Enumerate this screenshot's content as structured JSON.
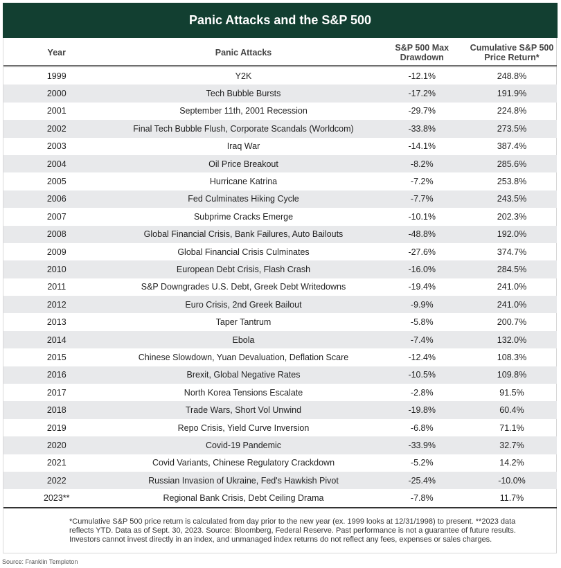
{
  "title": "Panic Attacks and the S&P 500",
  "headers": {
    "year": "Year",
    "panic": "Panic Attacks",
    "drawdown": "S&P 500 Max Drawdown",
    "return": "Cumulative S&P 500 Price Return*"
  },
  "rows": [
    [
      "1999",
      "Y2K",
      "-12.1%",
      "248.8%"
    ],
    [
      "2000",
      "Tech Bubble Bursts",
      "-17.2%",
      "191.9%"
    ],
    [
      "2001",
      "September 11th, 2001 Recession",
      "-29.7%",
      "224.8%"
    ],
    [
      "2002",
      "Final Tech Bubble Flush, Corporate Scandals (Worldcom)",
      "-33.8%",
      "273.5%"
    ],
    [
      "2003",
      "Iraq War",
      "-14.1%",
      "387.4%"
    ],
    [
      "2004",
      "Oil Price Breakout",
      "-8.2%",
      "285.6%"
    ],
    [
      "2005",
      "Hurricane Katrina",
      "-7.2%",
      "253.8%"
    ],
    [
      "2006",
      "Fed Culminates Hiking Cycle",
      "-7.7%",
      "243.5%"
    ],
    [
      "2007",
      "Subprime Cracks Emerge",
      "-10.1%",
      "202.3%"
    ],
    [
      "2008",
      "Global Financial Crisis, Bank Failures, Auto Bailouts",
      "-48.8%",
      "192.0%"
    ],
    [
      "2009",
      "Global Financial Crisis Culminates",
      "-27.6%",
      "374.7%"
    ],
    [
      "2010",
      "European Debt Crisis, Flash Crash",
      "-16.0%",
      "284.5%"
    ],
    [
      "2011",
      "S&P Downgrades U.S. Debt, Greek Debt Writedowns",
      "-19.4%",
      "241.0%"
    ],
    [
      "2012",
      "Euro Crisis, 2nd Greek Bailout",
      "-9.9%",
      "241.0%"
    ],
    [
      "2013",
      "Taper Tantrum",
      "-5.8%",
      "200.7%"
    ],
    [
      "2014",
      "Ebola",
      "-7.4%",
      "132.0%"
    ],
    [
      "2015",
      "Chinese Slowdown, Yuan Devaluation, Deflation Scare",
      "-12.4%",
      "108.3%"
    ],
    [
      "2016",
      "Brexit, Global Negative Rates",
      "-10.5%",
      "109.8%"
    ],
    [
      "2017",
      "North Korea Tensions Escalate",
      "-2.8%",
      "91.5%"
    ],
    [
      "2018",
      "Trade Wars, Short Vol Unwind",
      "-19.8%",
      "60.4%"
    ],
    [
      "2019",
      "Repo Crisis, Yield Curve Inversion",
      "-6.8%",
      "71.1%"
    ],
    [
      "2020",
      "Covid-19 Pandemic",
      "-33.9%",
      "32.7%"
    ],
    [
      "2021",
      "Covid Variants, Chinese Regulatory Crackdown",
      "-5.2%",
      "14.2%"
    ],
    [
      "2022",
      "Russian Invasion of Ukraine, Fed's Hawkish Pivot",
      "-25.4%",
      "-10.0%"
    ],
    [
      "2023**",
      "Regional Bank Crisis, Debt Ceiling Drama",
      "-7.8%",
      "11.7%"
    ]
  ],
  "footnote": "*Cumulative S&P 500 price return is calculated from day prior to the new year (ex. 1999 looks at 12/31/1998) to present. **2023 data reflects YTD. Data as of Sept. 30, 2023. Source: Bloomberg, Federal Reserve. Past performance is not a guarantee of future results. Investors cannot invest directly in an index, and unmanaged index returns do not reflect any fees, expenses or sales charges.",
  "source": "Source: Franklin Templeton"
}
